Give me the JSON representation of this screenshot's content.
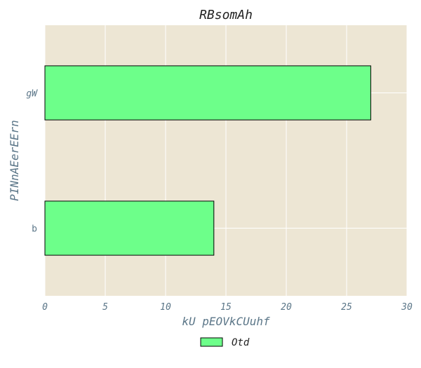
{
  "chart_data": {
    "type": "bar",
    "orientation": "horizontal",
    "title": "RBsomAh",
    "xlabel": "kU pEOVkCUuhf",
    "ylabel": "PINnAEerEErn",
    "categories": [
      "b",
      "gW"
    ],
    "category_label_italic": [
      false,
      true
    ],
    "series": [
      {
        "name": "Otd",
        "values": [
          14,
          27
        ],
        "color": "#6dff8a"
      }
    ],
    "xlim": [
      0,
      30
    ],
    "xticks": [
      0,
      5,
      10,
      15,
      20,
      25,
      30
    ],
    "grid": true,
    "legend_position": "bottom-center",
    "colors": {
      "plot_background": "#ede6d4",
      "grid": "#ffffff",
      "bar_edge": "#000000",
      "label": "#5b7688"
    }
  }
}
